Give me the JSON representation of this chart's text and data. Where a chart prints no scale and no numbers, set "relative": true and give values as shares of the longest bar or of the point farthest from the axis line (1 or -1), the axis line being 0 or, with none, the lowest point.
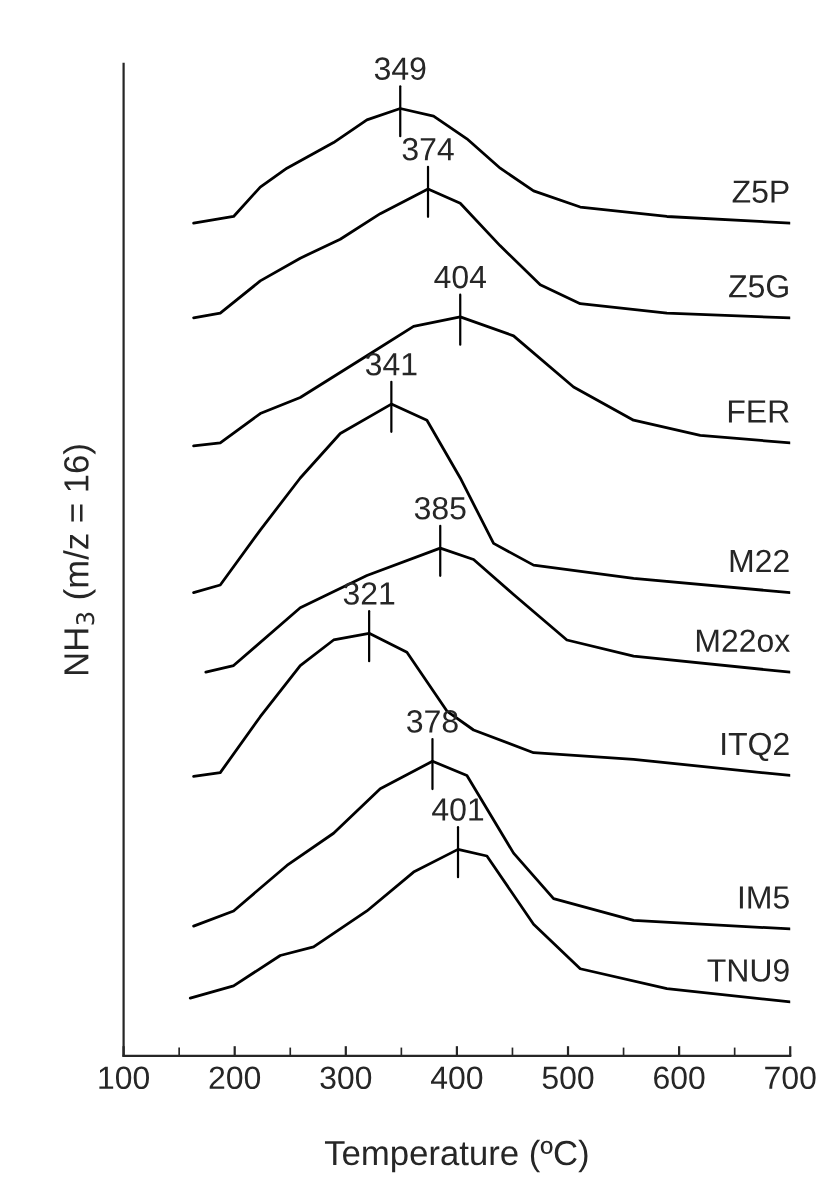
{
  "chart_data": {
    "type": "line",
    "relative": true,
    "xlabel": "Temperature (ºC)",
    "ylabel": "NH$_{3}$ (m/z = 16)",
    "xlim": [
      100,
      700
    ],
    "xticks": [
      100,
      200,
      300,
      400,
      500,
      600,
      700
    ],
    "grid": false,
    "legend": false,
    "marker": "none",
    "line_style": "solid",
    "tick_labels": "x",
    "series": [
      {
        "name": "Z5P",
        "color": "#000000",
        "x": [
          163,
          199,
          223,
          247,
          289,
          319,
          349,
          379,
          409,
          439,
          469,
          511,
          589,
          700
        ],
        "values": [
          0.879,
          0.886,
          0.917,
          0.937,
          0.964,
          0.988,
          1.0,
          0.992,
          0.968,
          0.937,
          0.913,
          0.896,
          0.886,
          0.879
        ]
      },
      {
        "name": "Z5G",
        "color": "#000000",
        "x": [
          163,
          187,
          223,
          259,
          295,
          331,
          374,
          403,
          439,
          475,
          511,
          589,
          700
        ],
        "values": [
          0.779,
          0.784,
          0.818,
          0.842,
          0.862,
          0.889,
          0.915,
          0.9,
          0.855,
          0.814,
          0.794,
          0.784,
          0.779
        ]
      },
      {
        "name": "FER",
        "color": "#000000",
        "x": [
          163,
          187,
          223,
          259,
          319,
          361,
          403,
          451,
          505,
          559,
          619,
          700
        ],
        "values": [
          0.644,
          0.647,
          0.678,
          0.695,
          0.739,
          0.77,
          0.78,
          0.76,
          0.706,
          0.671,
          0.655,
          0.647
        ]
      },
      {
        "name": "M22",
        "color": "#000000",
        "x": [
          163,
          187,
          223,
          259,
          295,
          341,
          373,
          403,
          433,
          469,
          559,
          700
        ],
        "values": [
          0.489,
          0.497,
          0.555,
          0.61,
          0.657,
          0.688,
          0.671,
          0.61,
          0.541,
          0.518,
          0.504,
          0.489
        ]
      },
      {
        "name": "M22ox",
        "color": "#000000",
        "x": [
          174,
          199,
          259,
          319,
          385,
          415,
          451,
          499,
          559,
          700
        ],
        "values": [
          0.405,
          0.412,
          0.473,
          0.507,
          0.536,
          0.524,
          0.487,
          0.439,
          0.422,
          0.405
        ]
      },
      {
        "name": "ITQ2",
        "color": "#000000",
        "x": [
          163,
          187,
          223,
          259,
          289,
          321,
          355,
          391,
          415,
          469,
          559,
          700
        ],
        "values": [
          0.295,
          0.299,
          0.358,
          0.412,
          0.439,
          0.446,
          0.426,
          0.364,
          0.344,
          0.32,
          0.313,
          0.296
        ]
      },
      {
        "name": "IM5",
        "color": "#000000",
        "x": [
          163,
          199,
          247,
          289,
          331,
          378,
          409,
          451,
          487,
          559,
          700
        ],
        "values": [
          0.137,
          0.153,
          0.201,
          0.235,
          0.282,
          0.311,
          0.296,
          0.214,
          0.166,
          0.143,
          0.134
        ]
      },
      {
        "name": "TNU9",
        "color": "#000000",
        "x": [
          160,
          199,
          241,
          271,
          319,
          361,
          401,
          427,
          469,
          511,
          589,
          700
        ],
        "values": [
          0.061,
          0.074,
          0.106,
          0.115,
          0.153,
          0.194,
          0.218,
          0.211,
          0.139,
          0.092,
          0.071,
          0.057
        ]
      }
    ],
    "annotations": [
      {
        "text": "349",
        "x": 349,
        "y": 1.0
      },
      {
        "text": "374",
        "x": 374,
        "y": 0.915
      },
      {
        "text": "404",
        "x": 403,
        "y": 0.78
      },
      {
        "text": "341",
        "x": 341,
        "y": 0.688
      },
      {
        "text": "385",
        "x": 385,
        "y": 0.536
      },
      {
        "text": "321",
        "x": 321,
        "y": 0.446
      },
      {
        "text": "378",
        "x": 378,
        "y": 0.311
      },
      {
        "text": "401",
        "x": 401,
        "y": 0.218
      }
    ]
  }
}
